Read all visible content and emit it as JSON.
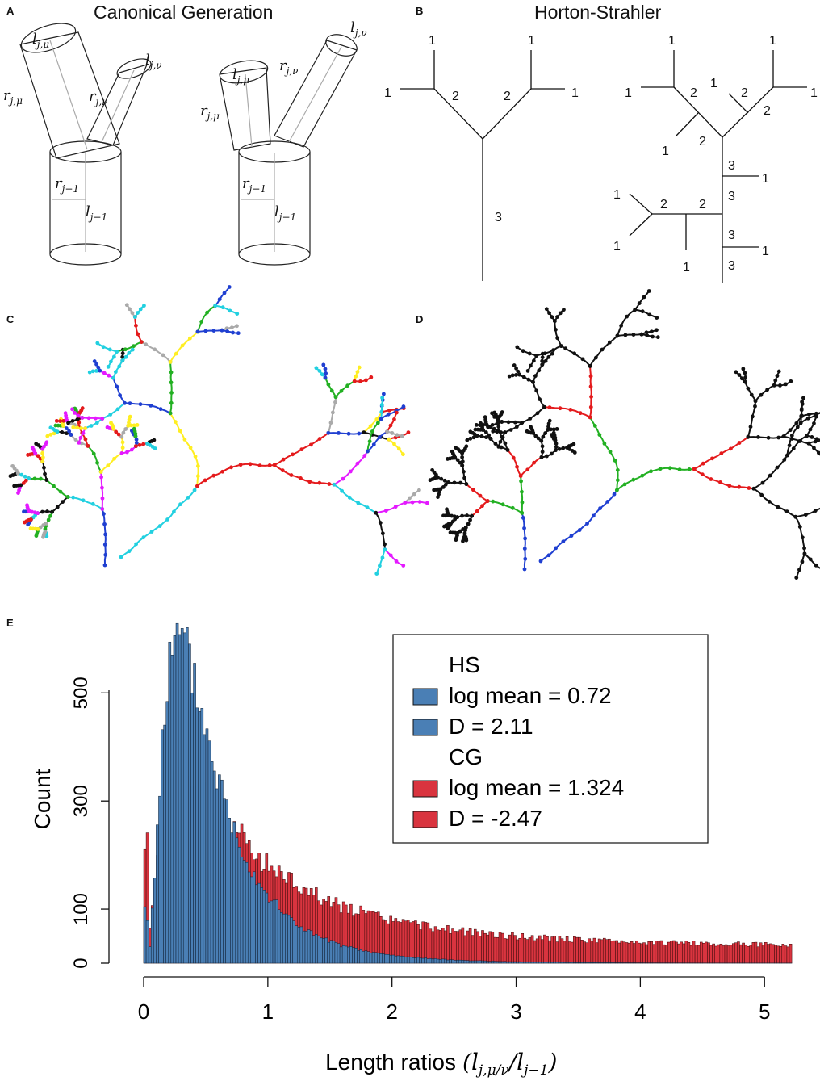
{
  "panels": {
    "A": {
      "letter": "A",
      "title": "Canonical Generation",
      "labels": {
        "l_mu": "l",
        "l_mu_sub": "j,μ",
        "l_nu": "l",
        "l_nu_sub": "j,ν",
        "r_mu": "r",
        "r_mu_sub": "j,μ",
        "r_nu": "r",
        "r_nu_sub": "j,ν",
        "r_parent": "r",
        "r_parent_sub": "j−1",
        "l_parent": "l",
        "l_parent_sub": "j−1"
      }
    },
    "B": {
      "letter": "B",
      "title": "Horton-Strahler"
    },
    "C": {
      "letter": "C"
    },
    "D": {
      "letter": "D"
    },
    "E": {
      "letter": "E"
    }
  },
  "hs_tree1": {
    "labels": [
      "1",
      "1",
      "1",
      "1",
      "2",
      "2",
      "3"
    ]
  },
  "hs_tree2": {
    "labels": [
      "1",
      "1",
      "1",
      "1",
      "1",
      "2",
      "2",
      "2",
      "1",
      "2",
      "1",
      "3",
      "3",
      "3",
      "3",
      "1",
      "1",
      "1",
      "1",
      "2",
      "2"
    ]
  },
  "chart_data": {
    "type": "bar",
    "xlabel": "Length ratios",
    "xlabel_math": "(l j,μ/ν / l j−1)",
    "ylabel": "Count",
    "xlim": [
      0,
      5.2
    ],
    "ylim": [
      0,
      620
    ],
    "xticks": [
      "0",
      "1",
      "2",
      "3",
      "4",
      "5"
    ],
    "yticks": [
      "0",
      "100",
      "300",
      "500"
    ],
    "series": [
      {
        "name": "HS",
        "color": "#4a7fb5",
        "description_lines": [
          "log mean = 0.72",
          "D = 2.11"
        ]
      },
      {
        "name": "CG",
        "color": "#d9343f",
        "description_lines": [
          "log mean = 1.324",
          "D = -2.47"
        ]
      }
    ],
    "legend": {
      "placement": "top-right",
      "entries": [
        {
          "text": "HS",
          "swatch": false
        },
        {
          "text": "log mean = 0.72",
          "swatch": true,
          "color": "#4a7fb5"
        },
        {
          "text": "D = 2.11",
          "swatch": true,
          "color": "#4a7fb5"
        },
        {
          "text": "CG",
          "swatch": false
        },
        {
          "text": "log mean = 1.324",
          "swatch": true,
          "color": "#d9343f"
        },
        {
          "text": "D = -2.47",
          "swatch": true,
          "color": "#d9343f"
        }
      ]
    }
  }
}
